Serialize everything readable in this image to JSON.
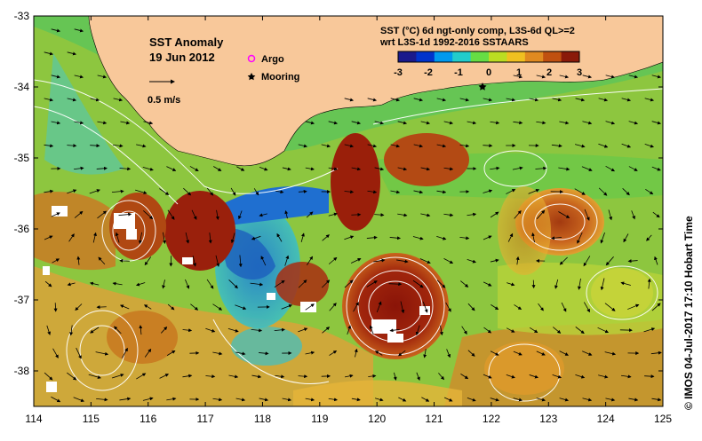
{
  "map": {
    "title": "SST Anomaly",
    "date": "19 Jun 2012",
    "scale_label": "0.5 m/s",
    "legend": [
      {
        "label": "Argo",
        "marker": "circle",
        "color": "#ff00ff"
      },
      {
        "label": "Mooring",
        "marker": "star",
        "color": "#000000"
      }
    ],
    "colorbar": {
      "line1": "SST (°C) 6d ngt-only comp, L3S-6d QL>=2",
      "line2": "wrt L3S-1d 1992-2016 SSTAARS",
      "ticks": [
        "-3",
        "-2",
        "-1",
        "0",
        "1",
        "2",
        "3"
      ],
      "range": [
        -3,
        3
      ],
      "colors": [
        "#1a1a8c",
        "#0033cc",
        "#0099ee",
        "#22cccc",
        "#66dd44",
        "#bbdd22",
        "#f0c020",
        "#e08a20",
        "#c05010",
        "#8a1a0a"
      ]
    },
    "credit": "© IMOS 04-Jul-2017 17:10 Hobart Time",
    "lon_ticks": [
      "114",
      "115",
      "116",
      "117",
      "118",
      "119",
      "120",
      "121",
      "122",
      "123",
      "124",
      "125"
    ],
    "lat_ticks": [
      "-33",
      "-34",
      "-35",
      "-36",
      "-37",
      "-38"
    ],
    "lon_range": [
      114,
      125
    ],
    "lat_range": [
      -38.5,
      -33
    ],
    "colors": {
      "land": "#f8c89a",
      "ocean_base": "#8dc63f",
      "warm_eddy": "#9a1f0a",
      "warm_orange": "#d88a28",
      "cool": "#2a8fd0",
      "contour": "#ffffff"
    }
  }
}
